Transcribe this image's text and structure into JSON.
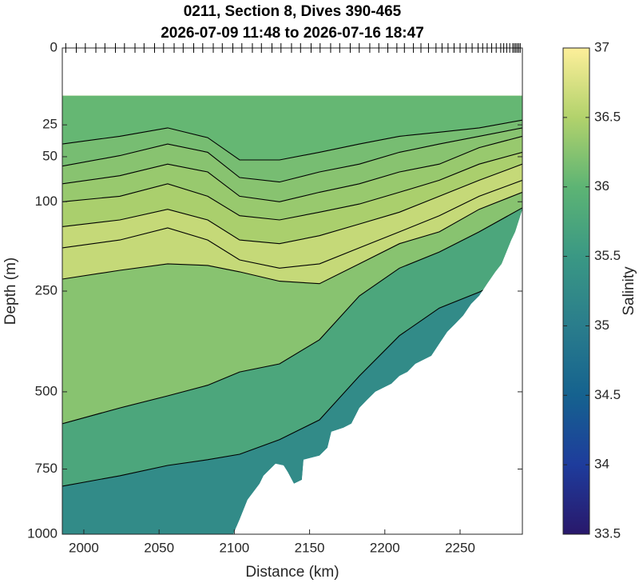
{
  "chart_data": {
    "type": "contour",
    "title": "0211, Section 8, Dives 390-465",
    "subtitle": "2026-07-09 11:48 to 2026-07-16 18:47",
    "xlabel": "Distance (km)",
    "ylabel": "Depth (m)",
    "xlim": [
      1985.7,
      2291.4
    ],
    "xticks": [
      2000,
      2050,
      2100,
      2150,
      2200,
      2250
    ],
    "ylim": [
      0,
      1000
    ],
    "yticks": [
      0,
      25,
      50,
      100,
      250,
      500,
      750,
      1000
    ],
    "yscale": "sqrt",
    "yreverse": true,
    "line_color": "#000000",
    "dive_positions": [
      1988,
      1995,
      2001,
      2008,
      2014,
      2021,
      2027,
      2034,
      2040,
      2047,
      2053,
      2060,
      2066,
      2073,
      2079,
      2086,
      2092,
      2099,
      2105,
      2112,
      2118,
      2125,
      2131,
      2138,
      2144,
      2151,
      2157,
      2164,
      2170,
      2177,
      2183,
      2190,
      2196,
      2202,
      2208,
      2213,
      2219,
      2224,
      2229,
      2234,
      2238,
      2242,
      2246,
      2250,
      2254,
      2258,
      2262,
      2265,
      2268,
      2271,
      2274,
      2277,
      2279,
      2281,
      2283,
      2285,
      2286,
      2287,
      2288,
      2289,
      2290
    ],
    "domain": {
      "top_depth": 9.7,
      "bottom_x": [
        1985.7,
        2099.3,
        2103.5,
        2108.8,
        2116.8,
        2119.4,
        2127.4,
        2132.7,
        2135.4,
        2139.6,
        2144.9,
        2146.0,
        2156.6,
        2161.9,
        2164.5,
        2172.5,
        2177.8,
        2183.1,
        2188.4,
        2193.7,
        2204.4,
        2209.7,
        2215.0,
        2220.3,
        2230.9,
        2236.2,
        2241.5,
        2246.8,
        2252.1,
        2257.4,
        2262.7,
        2268.0,
        2273.4,
        2277.6,
        2284.0,
        2286.6,
        2291.4
      ],
      "bottom_depth": [
        1000,
        1000,
        941,
        863,
        803,
        774,
        731,
        737,
        760,
        803,
        789,
        717,
        703,
        676,
        623,
        610,
        597,
        548,
        523,
        500,
        477,
        455,
        444,
        422,
        401,
        370,
        341,
        322,
        303,
        277,
        260,
        235,
        212,
        197,
        156,
        143,
        110
      ]
    },
    "contours": [
      {
        "level": 35.5,
        "x": [
          1985.7,
          2023.9,
          2055.7,
          2082.3,
          2103.5,
          2130.0,
          2156.6,
          2183.1,
          2209.7,
          2236.2,
          2262.7,
          2291.4
        ],
        "depth": [
          812,
          774,
          737,
          717,
          698,
          649,
          585,
          455,
          350,
          286,
          252,
          212
        ]
      },
      {
        "level": 36.0,
        "x": [
          1985.7,
          2023.9,
          2055.7,
          2082.3,
          2103.5,
          2130.0,
          2156.6,
          2183.1,
          2209.7,
          2236.2,
          2262.7,
          2291.4
        ],
        "depth": [
          597,
          548,
          512,
          481,
          444,
          422,
          360,
          260,
          205,
          176,
          143,
          108
        ]
      },
      {
        "level": 36.5,
        "x": [
          1985.7,
          2023.9,
          2055.7,
          2082.3,
          2103.5,
          2130.0,
          2156.6,
          2183.1,
          2209.7,
          2236.2,
          2262.7,
          2291.4
        ],
        "depth": [
          226,
          209,
          197,
          200,
          212,
          230,
          235,
          197,
          162,
          143,
          110,
          88
        ]
      },
      {
        "level": 36.75,
        "x": [
          1985.7,
          2023.9,
          2055.7,
          2082.3,
          2103.5,
          2130.0,
          2156.6,
          2183.1,
          2209.7,
          2236.2,
          2262.7,
          2291.4
        ],
        "depth": [
          169,
          156,
          137,
          156,
          190,
          205,
          197,
          169,
          143,
          119,
          93,
          74
        ]
      },
      {
        "level": 36.5,
        "x": [
          1985.7,
          2023.9,
          2055.7,
          2082.3,
          2103.5,
          2130.0,
          2156.6,
          2183.1,
          2209.7,
          2236.2,
          2262.7,
          2291.4
        ],
        "depth": [
          135,
          125,
          110,
          125,
          156,
          162,
          149,
          131,
          114,
          93,
          74,
          57
        ]
      },
      {
        "level": 36.4,
        "x": [
          1985.7,
          2023.9,
          2055.7,
          2082.3,
          2103.5,
          2130.0,
          2156.6,
          2183.1,
          2209.7,
          2236.2,
          2262.7,
          2291.4
        ],
        "depth": [
          100,
          93,
          78,
          93,
          119,
          125,
          114,
          103,
          88,
          74,
          57,
          46
        ]
      },
      {
        "level": 36.3,
        "x": [
          1985.7,
          2023.9,
          2055.7,
          2082.3,
          2103.5,
          2130.0,
          2156.6,
          2183.1,
          2209.7,
          2236.2,
          2262.7,
          2291.4
        ],
        "depth": [
          78,
          69,
          57,
          65,
          93,
          100,
          88,
          78,
          65,
          57,
          42,
          33
        ]
      },
      {
        "level": 36.2,
        "x": [
          1985.7,
          2023.9,
          2055.7,
          2082.3,
          2103.5,
          2130.0,
          2156.6,
          2183.1,
          2209.7,
          2236.2,
          2262.7,
          2291.4
        ],
        "depth": [
          59,
          49,
          39,
          46,
          71,
          76,
          65,
          57,
          46,
          39,
          33,
          27
        ]
      },
      {
        "level": 36.1,
        "x": [
          1985.7,
          2023.9,
          2055.7,
          2082.3,
          2103.5,
          2130.0,
          2156.6,
          2183.1,
          2209.7,
          2236.2,
          2262.7,
          2291.4
        ],
        "depth": [
          39,
          33,
          27,
          34,
          53,
          53,
          46,
          39,
          33,
          30,
          27,
          22
        ]
      }
    ],
    "colorbar": {
      "label": "Salinity",
      "clim": [
        33.5,
        37
      ],
      "ticks": [
        33.5,
        34,
        34.5,
        35,
        35.5,
        36,
        36.5,
        37
      ],
      "colormap": [
        "#29186b",
        "#1e3c9c",
        "#15628f",
        "#2a7d8c",
        "#3a9884",
        "#5db474",
        "#b2d26c",
        "#fdef9a"
      ]
    }
  }
}
